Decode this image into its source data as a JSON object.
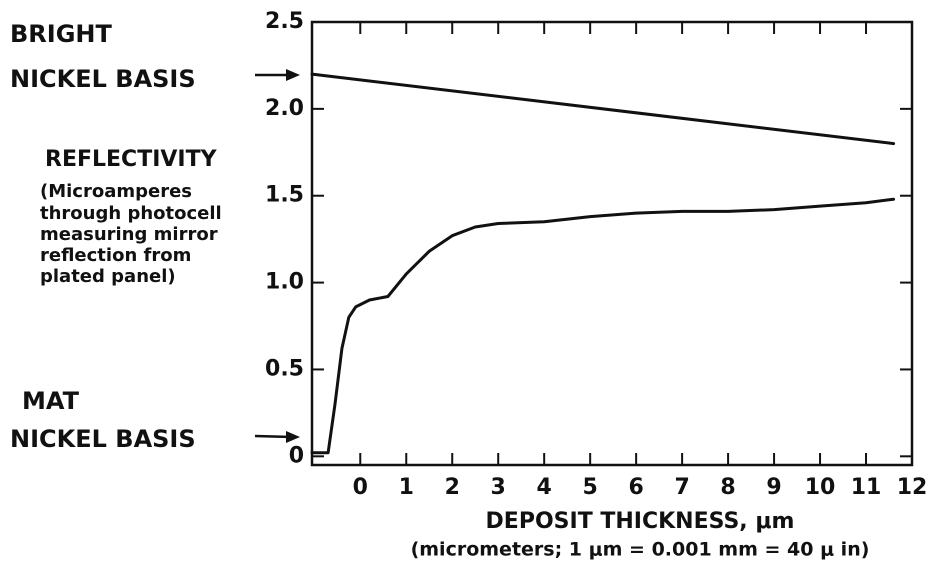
{
  "chart_data": {
    "type": "line",
    "annotations": [
      "BRIGHT",
      "NICKEL BASIS",
      "REFLECTIVITY",
      "(Microamperes",
      "through photocell",
      "measuring mirror",
      "reflection from",
      "plated panel)",
      "MAT",
      "NICKEL BASIS"
    ],
    "x_label": "DEPOSIT THICKNESS, μm",
    "x_note": "(micrometers; 1 μm = 0.001 mm = 40 μ in)",
    "series": [
      {
        "color": "#111111",
        "x": [
          -1.05,
          11.6
        ],
        "values": [
          2.2,
          1.8
        ]
      },
      {
        "color": "#111111",
        "x": [
          -1.05,
          -0.7,
          -0.55,
          -0.4,
          -0.25,
          -0.1,
          0.2,
          0.6,
          1.0,
          1.5,
          2.0,
          2.5,
          3.0,
          4.0,
          5.0,
          6.0,
          7.0,
          8.0,
          9.0,
          10.0,
          11.0,
          11.6
        ],
        "values": [
          0.02,
          0.02,
          0.3,
          0.62,
          0.8,
          0.86,
          0.9,
          0.92,
          1.05,
          1.18,
          1.27,
          1.32,
          1.34,
          1.35,
          1.38,
          1.4,
          1.41,
          1.41,
          1.42,
          1.44,
          1.46,
          1.48
        ]
      }
    ],
    "xlim": [
      -1.05,
      12.0
    ],
    "xticks": [
      0,
      1,
      2,
      3,
      4,
      5,
      6,
      7,
      8,
      9,
      10,
      11,
      12
    ],
    "ylim": [
      -0.05,
      2.5
    ],
    "yticks": [
      0,
      0.5,
      {
        "value": 1,
        "label": "1.0"
      },
      1.5,
      {
        "value": 2,
        "label": "2.0"
      },
      2.5
    ]
  }
}
